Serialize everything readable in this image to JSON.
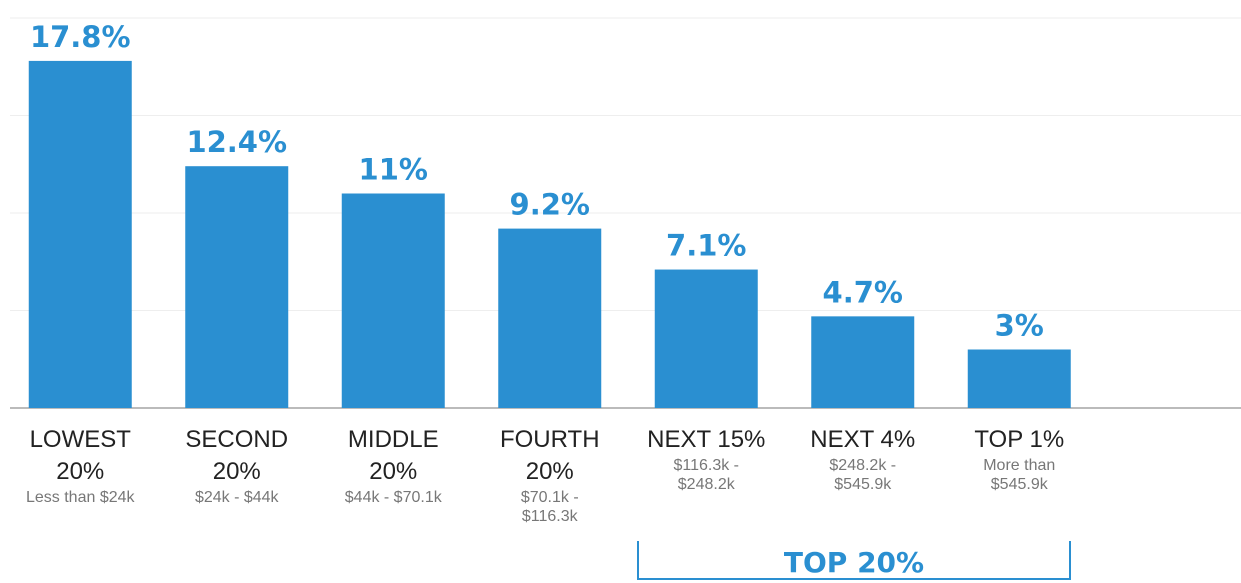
{
  "chart_data": {
    "type": "bar",
    "categories": [
      "LOWEST 20%",
      "SECOND 20%",
      "MIDDLE 20%",
      "FOURTH 20%",
      "NEXT 15%",
      "NEXT 4%",
      "TOP 1%"
    ],
    "sublabels": [
      "Less than $24k",
      "$24k - $44k",
      "$44k - $70.1k",
      "$70.1k - $116.3k",
      "$116.3k - $248.2k",
      "$248.2k - $545.9k",
      "More than $545.9k"
    ],
    "values": [
      17.8,
      12.4,
      11,
      9.2,
      7.1,
      4.7,
      3
    ],
    "value_labels": [
      "17.8%",
      "12.4%",
      "11%",
      "9.2%",
      "7.1%",
      "4.7%",
      "3%"
    ],
    "color": "#2a8fd1",
    "ylim": [
      0,
      20
    ],
    "yticks": [
      0,
      5,
      10,
      15,
      20
    ],
    "grid": true,
    "annotation": "TOP 20%"
  }
}
